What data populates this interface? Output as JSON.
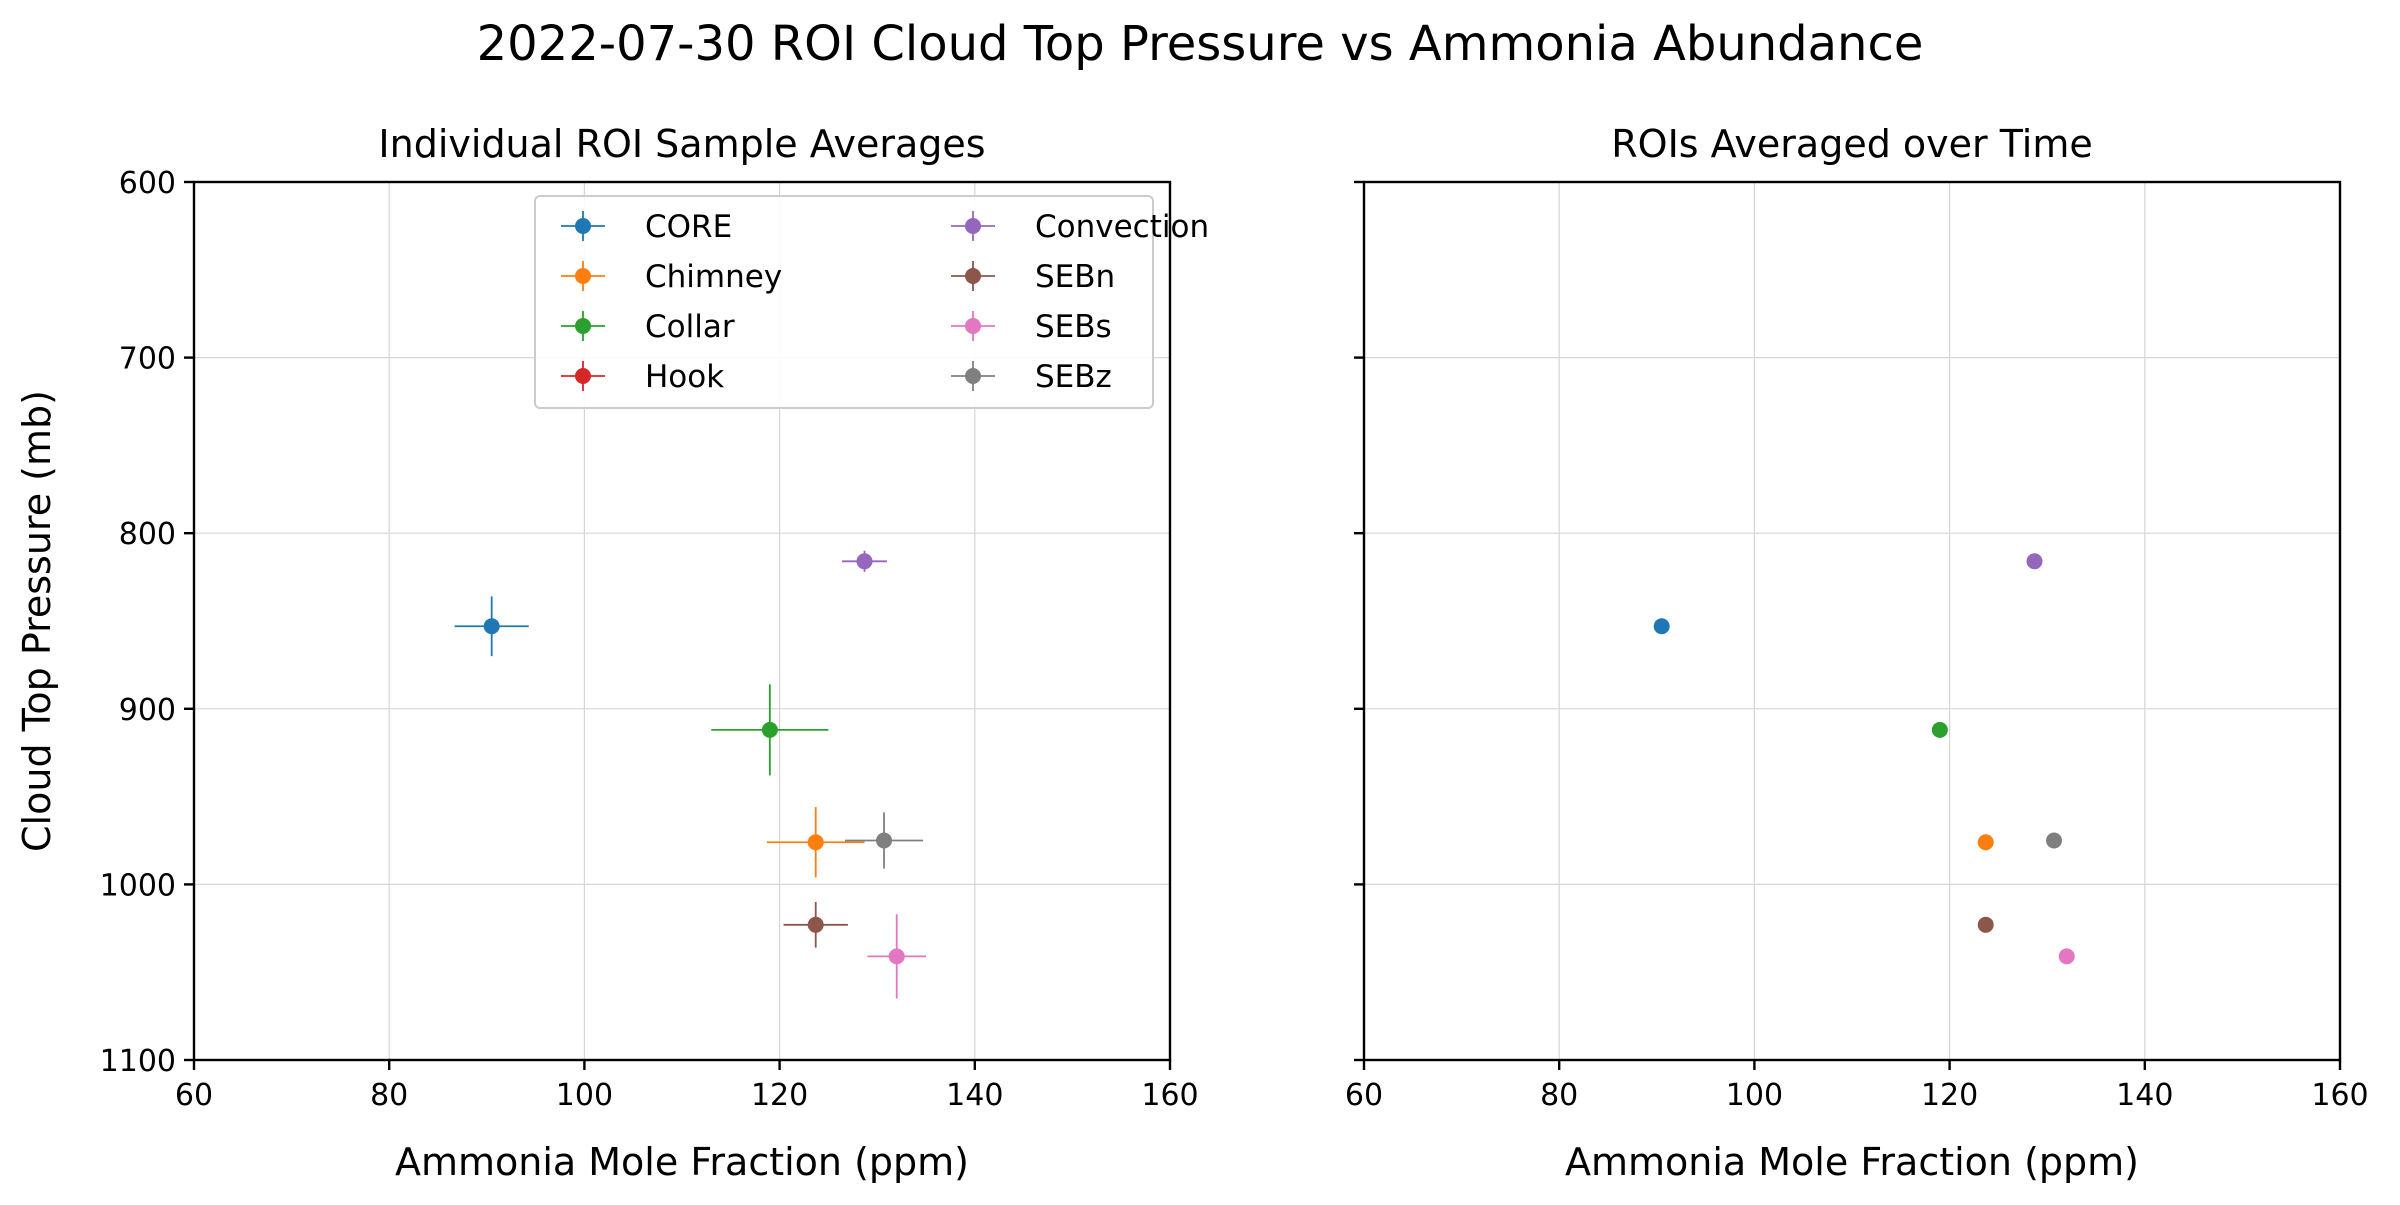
{
  "figure": {
    "suptitle": "2022-07-30 ROI Cloud Top Pressure vs Ammonia Abundance"
  },
  "colors": {
    "CORE": "#1f77b4",
    "Chimney": "#ff7f0e",
    "Collar": "#2ca02c",
    "Hook": "#d62728",
    "Convection": "#9467bd",
    "SEBn": "#8c564b",
    "SEBs": "#e377c2",
    "SEBz": "#7f7f7f"
  },
  "chart_data": [
    {
      "type": "scatter",
      "title": "Individual ROI Sample Averages",
      "xlabel": "Ammonia Mole Fraction (ppm)",
      "ylabel": "Cloud Top Pressure (mb)",
      "xlim": [
        60,
        160
      ],
      "ylim": [
        1100,
        600
      ],
      "y_inverted": true,
      "xticks": [
        "60",
        "80",
        "100",
        "120",
        "140",
        "160"
      ],
      "yticks": [
        "600",
        "700",
        "800",
        "900",
        "1000",
        "1100"
      ],
      "grid": true,
      "error_bars": true,
      "legend": {
        "placement": "upper-center",
        "columns": 2,
        "entries": [
          "CORE",
          "Chimney",
          "Collar",
          "Hook",
          "Convection",
          "SEBn",
          "SEBs",
          "SEBz"
        ]
      },
      "series": [
        {
          "name": "CORE",
          "x": 90.5,
          "y": 853,
          "xerr": 3.8,
          "yerr": 17
        },
        {
          "name": "Chimney",
          "x": 123.7,
          "y": 976,
          "xerr": 5,
          "yerr": 20
        },
        {
          "name": "Collar",
          "x": 119,
          "y": 912,
          "xerr": 6,
          "yerr": 26
        },
        {
          "name": "Hook",
          "x": null,
          "y": null,
          "xerr": null,
          "yerr": null
        },
        {
          "name": "Convection",
          "x": 128.7,
          "y": 816,
          "xerr": 2.3,
          "yerr": 6
        },
        {
          "name": "SEBn",
          "x": 123.7,
          "y": 1023,
          "xerr": 3.3,
          "yerr": 13
        },
        {
          "name": "SEBs",
          "x": 132,
          "y": 1041,
          "xerr": 3,
          "yerr": 24
        },
        {
          "name": "SEBz",
          "x": 130.7,
          "y": 975,
          "xerr": 4,
          "yerr": 16
        }
      ]
    },
    {
      "type": "scatter",
      "title": "ROIs Averaged over Time",
      "xlabel": "Ammonia Mole Fraction (ppm)",
      "ylabel": "",
      "xlim": [
        60,
        160
      ],
      "ylim": [
        1100,
        600
      ],
      "y_inverted": true,
      "xticks": [
        "60",
        "80",
        "100",
        "120",
        "140",
        "160"
      ],
      "shared_y": true,
      "grid": true,
      "series": [
        {
          "name": "CORE",
          "x": 90.5,
          "y": 853
        },
        {
          "name": "Chimney",
          "x": 123.7,
          "y": 976
        },
        {
          "name": "Collar",
          "x": 119,
          "y": 912
        },
        {
          "name": "Convection",
          "x": 128.7,
          "y": 816
        },
        {
          "name": "SEBn",
          "x": 123.7,
          "y": 1023
        },
        {
          "name": "SEBs",
          "x": 132,
          "y": 1041
        },
        {
          "name": "SEBz",
          "x": 130.7,
          "y": 975
        }
      ]
    }
  ]
}
